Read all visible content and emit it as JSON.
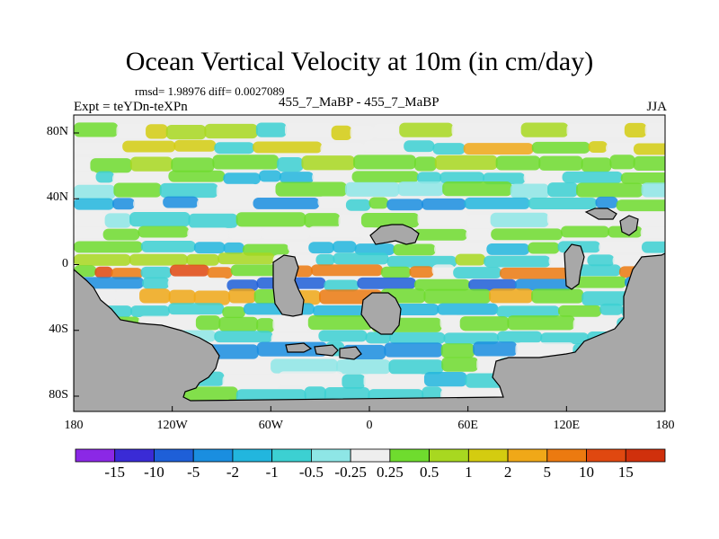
{
  "title": "Ocean Vertical Velocity at 10m (in cm/day)",
  "stats": "rmsd= 1.98976 diff= 0.0027089",
  "experiment": "Expt = teYDn-teXPn",
  "center_label": "455_7_MaBP - 455_7_MaBP",
  "season": "JJA",
  "y_axis_labels": [
    "80N",
    "40N",
    "0",
    "40S",
    "80S"
  ],
  "x_axis_labels": [
    "180",
    "120W",
    "60W",
    "0",
    "60E",
    "120E",
    "180"
  ],
  "colorbar": {
    "labels": [
      "-15",
      "-10",
      "-5",
      "-2",
      "-1",
      "-0.5",
      "-0.25",
      "0.25",
      "0.5",
      "1",
      "2",
      "5",
      "10",
      "15"
    ],
    "colors": [
      "#8b28e6",
      "#3a2bd6",
      "#1e5fd8",
      "#1a8ee0",
      "#22b6de",
      "#3cd0d2",
      "#8ee6e6",
      "#eeeeee",
      "#6fdc2e",
      "#a8d820",
      "#d4cc10",
      "#f0a818",
      "#ec7a10",
      "#e04810",
      "#d0300c"
    ]
  },
  "colors": {
    "land": "#a8a8a8",
    "neutral": "#eeeeee"
  }
}
